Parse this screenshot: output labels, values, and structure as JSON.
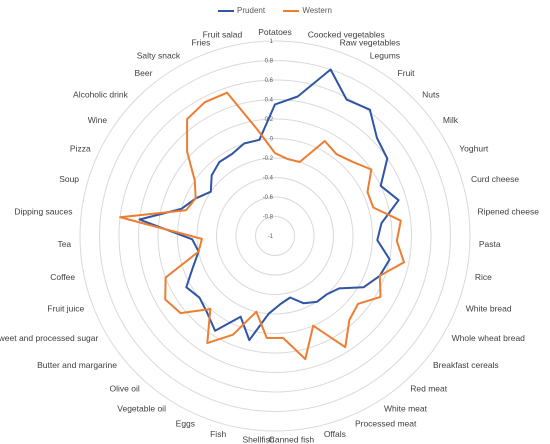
{
  "chart_data": {
    "type": "radar",
    "title": "",
    "rlim": [
      -1,
      1
    ],
    "ticks": [
      "1",
      "0.8",
      "0.6",
      "0.4",
      "0.2",
      "0",
      "-0.2",
      "-0.4",
      "-0.6",
      "-0.8",
      "-1"
    ],
    "tick_values": [
      1,
      0.8,
      0.6,
      0.4,
      0.2,
      0,
      -0.2,
      -0.4,
      -0.6,
      -0.8,
      -1
    ],
    "legend_position": "top",
    "categories": [
      "Potatoes",
      "Coocked vegetables",
      "Raw vegetables",
      "Legums",
      "Fruit",
      "Nuts",
      "Milk",
      "Yoghurt",
      "Curd cheese",
      "Ripened cheese",
      "Pasta",
      "Rice",
      "White bread",
      "Whole wheat bread",
      "Breakfast cereals",
      "Red meat",
      "White meat",
      "Processed meat",
      "Offals",
      "Canned fish",
      "Shellfish",
      "Fish",
      "Eggs",
      "Vegetable oil",
      "Olive oil",
      "Butter and margarine",
      "Sweet and processed sugar",
      "Fruit juice",
      "Coffee",
      "Tea",
      "Dipping sauces",
      "Soup",
      "Pizza",
      "Wine",
      "Alcoholic drink",
      "Beer",
      "Salty snack",
      "Fries",
      "Fruit salad"
    ],
    "series": [
      {
        "name": "Prudent",
        "color": "#2F55A4",
        "values": [
          0.35,
          0.45,
          0.8,
          0.58,
          0.62,
          0.45,
          0.4,
          0.2,
          0.32,
          0.1,
          0.05,
          0.2,
          0.15,
          0.05,
          -0.15,
          -0.2,
          -0.2,
          -0.25,
          -0.35,
          -0.3,
          -0.2,
          0.1,
          -0.1,
          0.15,
          0.05,
          0.0,
          0.05,
          -0.1,
          -0.2,
          -0.15,
          0.4,
          0.0,
          -0.1,
          -0.2,
          -0.1,
          -0.05,
          -0.05,
          0.0,
          0.0
        ]
      },
      {
        "name": "Western",
        "color": "#ED7D31",
        "values": [
          -0.15,
          -0.2,
          -0.2,
          0.1,
          0.05,
          0.1,
          0.2,
          0.05,
          0.05,
          0.3,
          0.25,
          0.35,
          0.15,
          0.25,
          0.1,
          0.15,
          0.35,
          0.0,
          0.3,
          0.05,
          0.05,
          -0.2,
          0.1,
          0.3,
          0.0,
          0.25,
          0.3,
          0.2,
          -0.2,
          -0.25,
          0.6,
          -0.05,
          -0.1,
          0.0,
          0.25,
          0.5,
          0.55,
          0.55,
          0.1
        ]
      }
    ]
  }
}
